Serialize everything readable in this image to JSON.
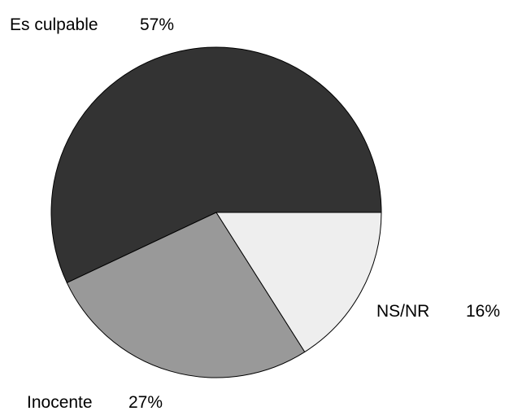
{
  "chart_data": {
    "type": "pie",
    "title": "",
    "start_angle_deg": 0,
    "direction": "counterclockwise",
    "legend": "none",
    "slices": [
      {
        "label": "Es culpable",
        "value": 57,
        "value_text": "57%",
        "color": "#333333"
      },
      {
        "label": "Inocente",
        "value": 27,
        "value_text": "27%",
        "color": "#999999"
      },
      {
        "label": "NS/NR",
        "value": 16,
        "value_text": "16%",
        "color": "#eeeeee"
      }
    ]
  }
}
